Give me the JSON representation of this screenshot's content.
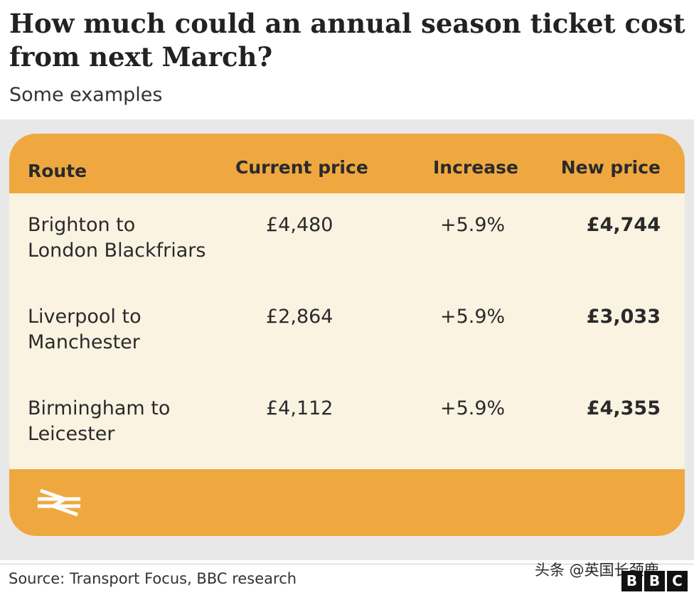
{
  "title": "How much could an annual season ticket cost from next March?",
  "subtitle": "Some examples",
  "source": "Source: Transport Focus, BBC research",
  "watermark": "头条 @英国长颈鹿",
  "logo": [
    "B",
    "B",
    "C"
  ],
  "colors": {
    "card": "#efa840",
    "row_bg": "#fbf3e2",
    "panel_bg": "#e8e8e8",
    "icon": "#ffffff"
  },
  "icon": "national-rail-icon",
  "chart_data": {
    "type": "table",
    "title": "How much could an annual season ticket cost from next March?",
    "subtitle": "Some examples",
    "columns": [
      "Route",
      "Current price",
      "Increase",
      "New price"
    ],
    "rows": [
      {
        "route": [
          "Brighton to",
          "London Blackfriars"
        ],
        "current": "£4,480",
        "increase": "+5.9%",
        "new": "£4,744"
      },
      {
        "route": [
          "Liverpool to",
          "Manchester"
        ],
        "current": "£2,864",
        "increase": "+5.9%",
        "new": "£3,033"
      },
      {
        "route": [
          "Birmingham to",
          "Leicester"
        ],
        "current": "£4,112",
        "increase": "+5.9%",
        "new": "£4,355"
      }
    ]
  }
}
